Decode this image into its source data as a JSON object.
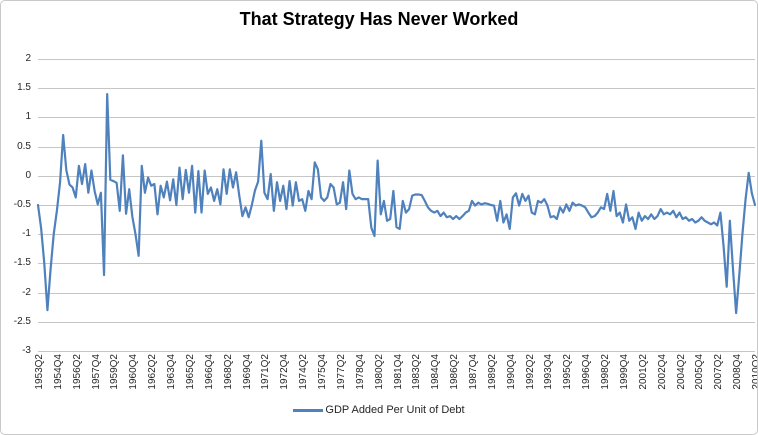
{
  "title": "That Strategy Has Never Worked",
  "legend": {
    "label": "GDP Added Per Unit of Debt"
  },
  "colors": {
    "line": "#4F81BD",
    "gridline": "#C6C6C6",
    "axis_text": "#262626",
    "title_text": "#000000",
    "background": "#FFFFFF",
    "border": "#C9C9C9"
  },
  "y_axis": {
    "tick_labels": [
      "2",
      "1.5",
      "1",
      "0.5",
      "0",
      "-0.5",
      "-1",
      "-1.5",
      "-2",
      "-2.5",
      "-3"
    ],
    "max": 2,
    "min": -3,
    "step": 0.5
  },
  "x_axis": {
    "tick_labels": [
      "1953Q2",
      "1954Q4",
      "1956Q2",
      "1957Q4",
      "1959Q2",
      "1960Q4",
      "1962Q2",
      "1963Q4",
      "1965Q2",
      "1966Q4",
      "1968Q2",
      "1969Q4",
      "1971Q2",
      "1972Q4",
      "1974Q2",
      "1975Q4",
      "1977Q2",
      "1978Q4",
      "1980Q2",
      "1981Q4",
      "1983Q2",
      "1984Q4",
      "1986Q2",
      "1987Q4",
      "1989Q2",
      "1990Q4",
      "1992Q2",
      "1993Q4",
      "1995Q2",
      "1996Q4",
      "1998Q2",
      "1999Q4",
      "2001Q2",
      "2002Q4",
      "2004Q2",
      "2005Q4",
      "2007Q2",
      "2008Q4",
      "2010Q2"
    ],
    "label_every_n_points": 6
  },
  "chart_data": {
    "type": "line",
    "title": "That Strategy Has Never Worked",
    "x_start": "1953Q2",
    "x_end": "2010Q2",
    "x_frequency": "quarterly",
    "x_tick_labels_every": 6,
    "ylim": [
      -3,
      2
    ],
    "grid": "horizontal",
    "legend_position": "bottom",
    "series": [
      {
        "name": "GDP Added Per Unit of Debt",
        "color": "#4F81BD",
        "values": [
          -0.5,
          -0.9,
          -1.5,
          -2.3,
          -1.6,
          -1.0,
          -0.6,
          -0.12,
          0.7,
          0.1,
          -0.15,
          -0.2,
          -0.37,
          0.17,
          -0.14,
          0.2,
          -0.29,
          0.09,
          -0.26,
          -0.49,
          -0.29,
          -1.7,
          1.4,
          -0.07,
          -0.09,
          -0.12,
          -0.6,
          0.35,
          -0.65,
          -0.23,
          -0.7,
          -1.0,
          -1.37,
          0.17,
          -0.29,
          -0.03,
          -0.17,
          -0.14,
          -0.66,
          -0.17,
          -0.37,
          -0.1,
          -0.42,
          -0.06,
          -0.5,
          0.14,
          -0.4,
          0.1,
          -0.29,
          0.17,
          -0.63,
          0.08,
          -0.63,
          0.09,
          -0.31,
          -0.2,
          -0.43,
          -0.23,
          -0.49,
          0.11,
          -0.31,
          0.11,
          -0.2,
          0.06,
          -0.34,
          -0.69,
          -0.54,
          -0.71,
          -0.5,
          -0.25,
          -0.1,
          0.6,
          -0.29,
          -0.4,
          0.03,
          -0.6,
          -0.11,
          -0.43,
          -0.17,
          -0.57,
          -0.09,
          -0.51,
          -0.11,
          -0.43,
          -0.4,
          -0.6,
          -0.26,
          -0.4,
          0.23,
          0.11,
          -0.37,
          -0.43,
          -0.37,
          -0.14,
          -0.2,
          -0.49,
          -0.46,
          -0.11,
          -0.57,
          0.09,
          -0.31,
          -0.4,
          -0.37,
          -0.4,
          -0.4,
          -0.4,
          -0.89,
          -1.03,
          0.26,
          -0.66,
          -0.43,
          -0.77,
          -0.74,
          -0.26,
          -0.88,
          -0.91,
          -0.43,
          -0.63,
          -0.57,
          -0.34,
          -0.32,
          -0.32,
          -0.33,
          -0.43,
          -0.54,
          -0.6,
          -0.63,
          -0.6,
          -0.69,
          -0.63,
          -0.71,
          -0.69,
          -0.74,
          -0.69,
          -0.74,
          -0.69,
          -0.63,
          -0.6,
          -0.43,
          -0.51,
          -0.46,
          -0.49,
          -0.47,
          -0.48,
          -0.5,
          -0.51,
          -0.77,
          -0.43,
          -0.8,
          -0.66,
          -0.91,
          -0.37,
          -0.3,
          -0.51,
          -0.31,
          -0.43,
          -0.34,
          -0.63,
          -0.66,
          -0.43,
          -0.46,
          -0.4,
          -0.51,
          -0.71,
          -0.69,
          -0.74,
          -0.54,
          -0.63,
          -0.49,
          -0.6,
          -0.46,
          -0.51,
          -0.49,
          -0.51,
          -0.54,
          -0.63,
          -0.71,
          -0.69,
          -0.63,
          -0.54,
          -0.57,
          -0.31,
          -0.6,
          -0.26,
          -0.69,
          -0.63,
          -0.8,
          -0.49,
          -0.77,
          -0.71,
          -0.91,
          -0.63,
          -0.77,
          -0.69,
          -0.74,
          -0.66,
          -0.74,
          -0.69,
          -0.57,
          -0.66,
          -0.63,
          -0.66,
          -0.6,
          -0.71,
          -0.63,
          -0.74,
          -0.71,
          -0.77,
          -0.74,
          -0.8,
          -0.77,
          -0.71,
          -0.77,
          -0.8,
          -0.83,
          -0.8,
          -0.85,
          -0.63,
          -1.2,
          -1.9,
          -0.77,
          -1.6,
          -2.35,
          -1.7,
          -1.0,
          -0.4,
          0.05,
          -0.3,
          -0.5
        ]
      }
    ]
  }
}
